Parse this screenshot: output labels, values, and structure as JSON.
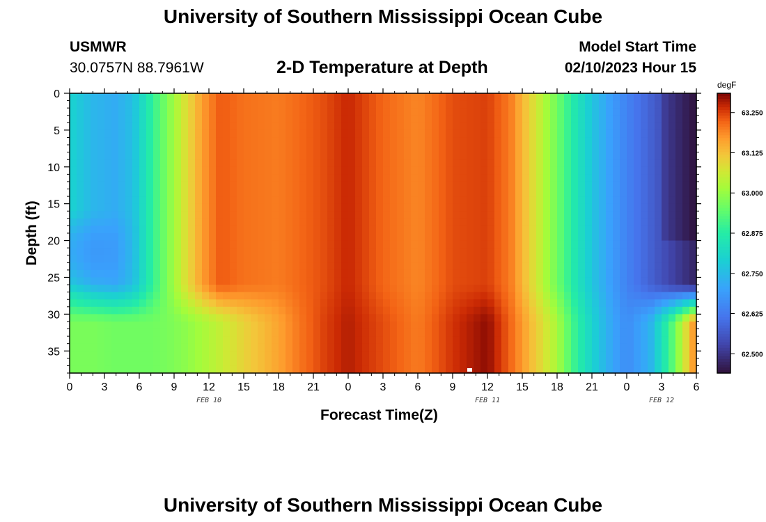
{
  "header": {
    "title": "University of Southern Mississippi Ocean Cube",
    "station": "USMWR",
    "coords": "30.0757N  88.7961W",
    "plot_title": "2-D Temperature at Depth",
    "model_start_label": "Model Start Time",
    "model_start_value": "02/10/2023 Hour 15"
  },
  "footer": {
    "title": "University of Southern Mississippi Ocean Cube"
  },
  "chart_data": {
    "type": "heatmap",
    "title": "2-D Temperature at Depth",
    "xlabel": "Forecast Time(Z)",
    "ylabel": "Depth (ft)",
    "x_ticks": [
      "0",
      "3",
      "6",
      "9",
      "12",
      "15",
      "18",
      "21",
      "0",
      "3",
      "6",
      "9",
      "12",
      "15",
      "18",
      "21",
      "0",
      "3",
      "6"
    ],
    "x_range_hours_from_feb10_00z": [
      0,
      54
    ],
    "date_labels": [
      "FEB 10",
      "FEB 11",
      "FEB 12"
    ],
    "y_ticks": [
      "0",
      "5",
      "10",
      "15",
      "20",
      "25",
      "30",
      "35"
    ],
    "ylim": [
      0,
      38
    ],
    "colorbar": {
      "unit": "degF",
      "ticks": [
        "63.250",
        "63.125",
        "63.000",
        "62.875",
        "62.750",
        "62.625",
        "62.500"
      ],
      "range": [
        62.44,
        63.31
      ]
    },
    "temperature_profile_degF": {
      "x_hours": [
        0,
        2,
        4,
        5.5,
        7,
        8.5,
        10,
        11.5,
        13,
        15,
        18,
        20,
        22,
        24,
        27,
        30,
        33,
        36,
        38,
        40,
        42,
        43.5,
        45,
        46.5,
        48,
        50,
        52,
        54
      ],
      "upper_0_to_26ft": [
        62.8,
        62.74,
        62.72,
        62.76,
        62.88,
        62.98,
        63.08,
        63.17,
        63.23,
        63.21,
        63.2,
        63.22,
        63.24,
        63.27,
        63.22,
        63.19,
        63.24,
        63.25,
        63.2,
        63.08,
        62.96,
        62.86,
        62.77,
        62.7,
        62.64,
        62.58,
        62.52,
        62.47
      ],
      "lower_31_to_38ft": [
        62.97,
        62.97,
        62.96,
        62.96,
        62.96,
        62.97,
        62.99,
        63.02,
        63.05,
        63.1,
        63.16,
        63.21,
        63.25,
        63.28,
        63.24,
        63.2,
        63.26,
        63.3,
        63.22,
        63.12,
        63.02,
        62.9,
        62.8,
        62.72,
        62.66,
        62.73,
        62.94,
        63.2
      ]
    }
  }
}
